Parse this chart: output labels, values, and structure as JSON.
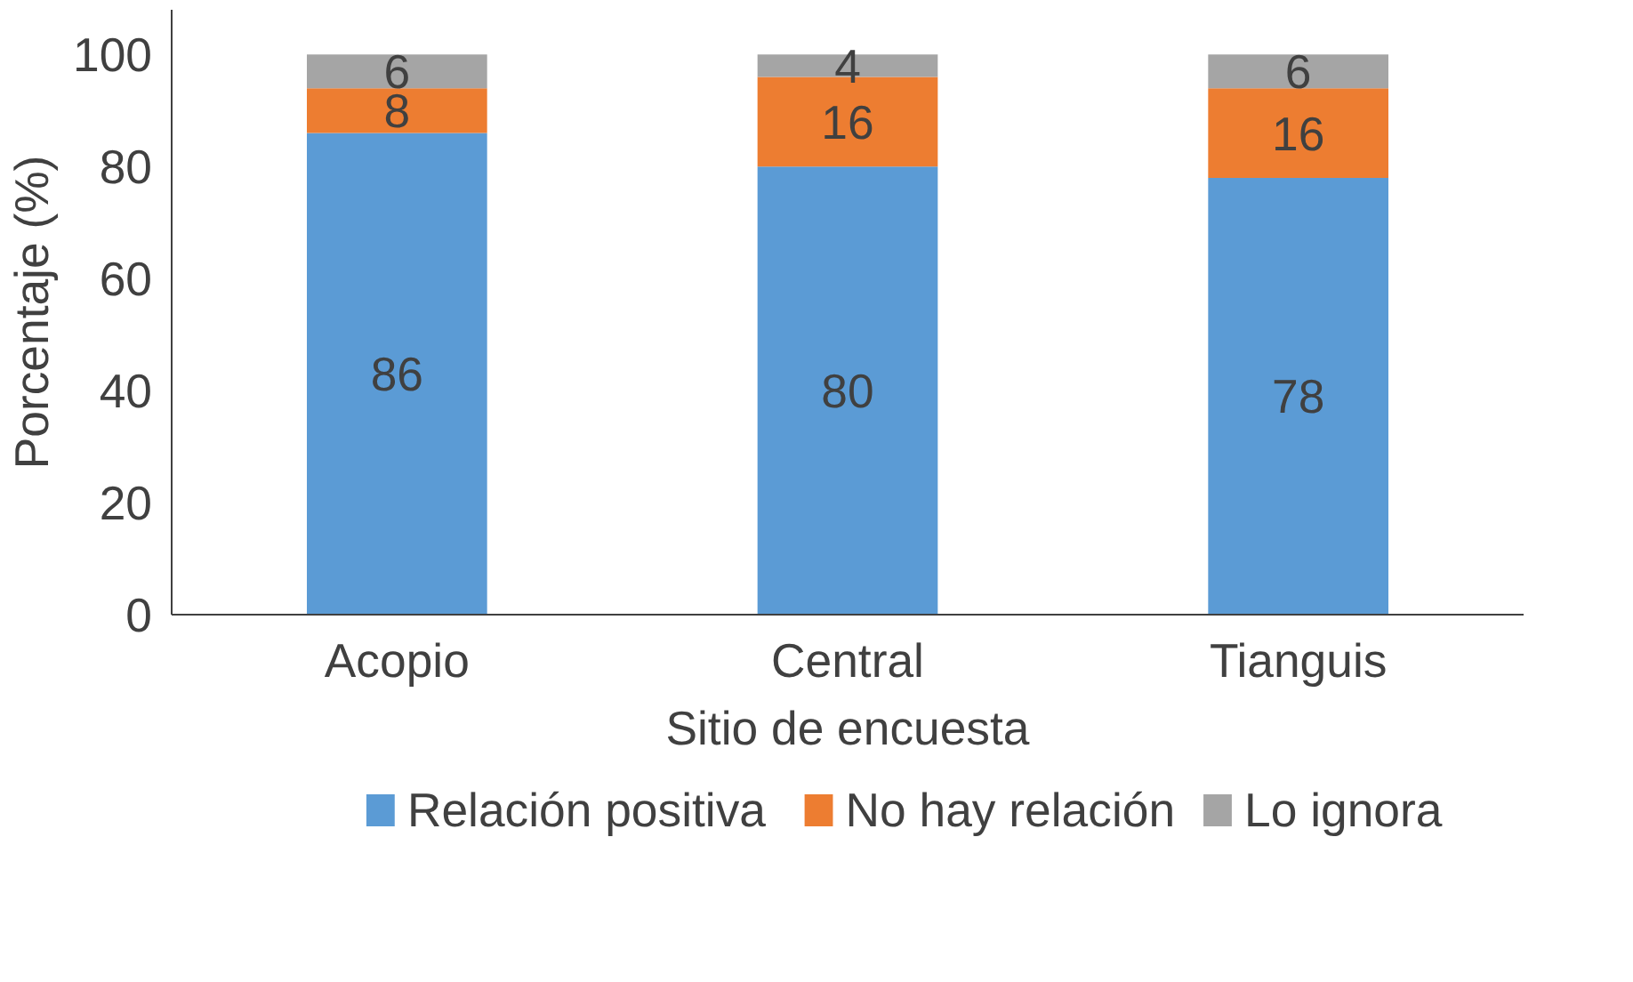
{
  "chart_data": {
    "type": "bar",
    "stacked": true,
    "xlabel": "Sitio de encuesta",
    "ylabel": "Porcentaje (%)",
    "categories": [
      "Acopio",
      "Central",
      "Tianguis"
    ],
    "series": [
      {
        "name": "Relación positiva",
        "color": "#5b9bd5",
        "values": [
          86,
          80,
          78
        ]
      },
      {
        "name": "No hay relación",
        "color": "#ed7d31",
        "values": [
          8,
          16,
          16
        ]
      },
      {
        "name": "Lo ignora",
        "color": "#a5a5a5",
        "values": [
          6,
          4,
          6
        ]
      }
    ],
    "ylim": [
      0,
      108
    ],
    "yticks": [
      0,
      20,
      40,
      60,
      80,
      100
    ],
    "grid": false,
    "legend": "bottom",
    "data_labels": true
  }
}
